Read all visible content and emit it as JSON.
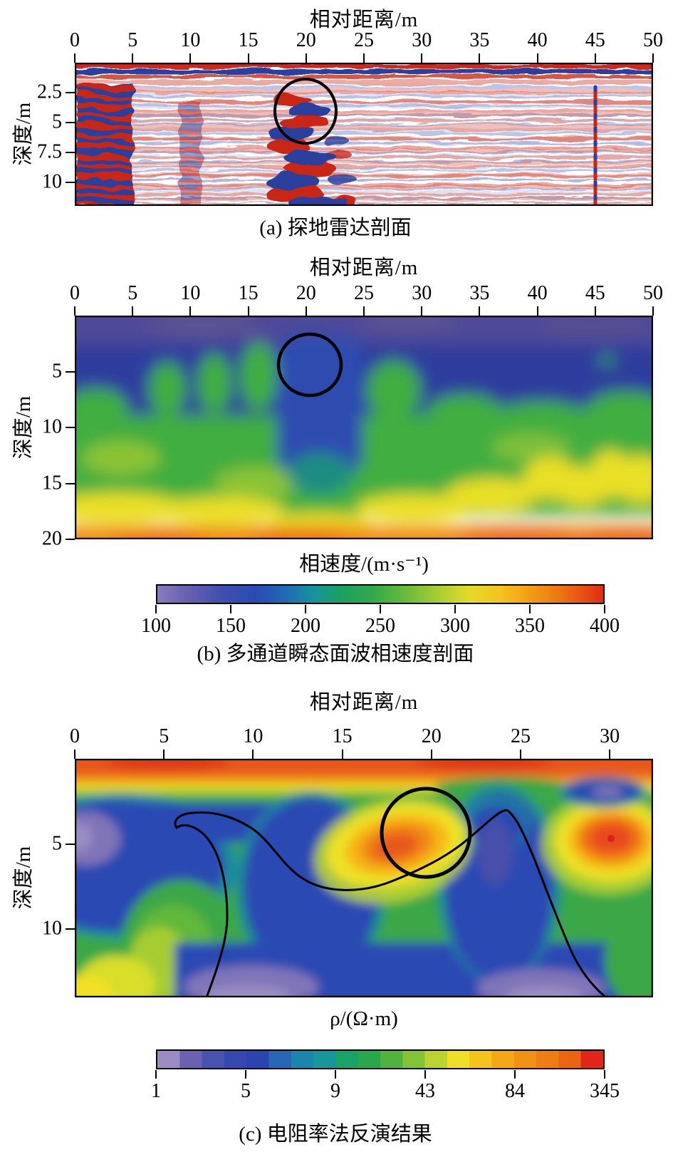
{
  "panel_a": {
    "axis_title": "相对距离/m",
    "x_ticks": [
      "0",
      "5",
      "10",
      "15",
      "20",
      "25",
      "30",
      "35",
      "40",
      "45",
      "50"
    ],
    "y_label": "深度/m",
    "y_ticks": [
      "2.5",
      "5",
      "7.5",
      "10"
    ],
    "caption": "(a) 探地雷达剖面"
  },
  "panel_b": {
    "axis_title": "相对距离/m",
    "x_ticks": [
      "0",
      "5",
      "10",
      "15",
      "20",
      "25",
      "30",
      "35",
      "40",
      "45",
      "50"
    ],
    "y_label": "深度/m",
    "y_ticks": [
      "5",
      "10",
      "15",
      "20"
    ],
    "colorbar": {
      "title": "相速度/(m·s⁻¹)",
      "ticks": [
        "100",
        "150",
        "200",
        "250",
        "300",
        "350",
        "400"
      ],
      "gradient_stops": [
        [
          "#8a7bbd",
          0
        ],
        [
          "#6b62b2",
          6
        ],
        [
          "#4150ae",
          14
        ],
        [
          "#2b4ab4",
          22
        ],
        [
          "#1e6cb4",
          29
        ],
        [
          "#17939c",
          35
        ],
        [
          "#1ba063",
          41
        ],
        [
          "#2fa94a",
          48
        ],
        [
          "#62b93b",
          55
        ],
        [
          "#a8ce30",
          63
        ],
        [
          "#e4dc28",
          70
        ],
        [
          "#f5c31d",
          77
        ],
        [
          "#f3a015",
          83
        ],
        [
          "#ef7d13",
          89
        ],
        [
          "#e95412",
          95
        ],
        [
          "#e22b15",
          100
        ]
      ]
    },
    "caption": "(b) 多通道瞬态面波相速度剖面"
  },
  "panel_c": {
    "axis_title": "相对距离/m",
    "x_ticks": [
      "0",
      "5",
      "10",
      "15",
      "20",
      "25",
      "30"
    ],
    "y_label": "深度/m",
    "y_ticks": [
      "5",
      "10"
    ],
    "colorbar": {
      "title": "ρ/(Ω·m)",
      "ticks": [
        "1",
        "5",
        "9",
        "43",
        "84",
        "345"
      ],
      "cell_colors": [
        "#9a8cc3",
        "#6c61b0",
        "#4753ae",
        "#3747ad",
        "#2b44af",
        "#2767b4",
        "#1a86ac",
        "#17969b",
        "#1ba269",
        "#27a84f",
        "#52b23f",
        "#83c437",
        "#bad331",
        "#efe026",
        "#f6c21c",
        "#f4a816",
        "#f19114",
        "#ee7d13",
        "#ea6412",
        "#e1251b"
      ]
    },
    "caption": "(c) 电阻率法反演结果"
  },
  "chart_data": [
    {
      "type": "heatmap",
      "panel": "a",
      "title": "(a) 探地雷达剖面",
      "xlabel": "相对距离/m",
      "ylabel": "深度/m",
      "x_range": [
        0,
        50
      ],
      "y_range": [
        0,
        12
      ],
      "x_ticks": [
        0,
        5,
        10,
        15,
        20,
        25,
        30,
        35,
        40,
        45,
        50
      ],
      "y_ticks": [
        2.5,
        5,
        7.5,
        10
      ],
      "description": "GPR radargram with red/blue reflection amplitudes on white background",
      "features": [
        "strong horizontal layered red-blue reflections at 0-5 m distance for full depth",
        "continuous red and blue bands at depth 0-1.5 m across whole section",
        "chaotic high-amplitude diffraction zone at 16-26 m distance from ~2.5 m depth to bottom",
        "faint pink/blue laminated texture elsewhere",
        "vertical dotted red-blue ringing artifact at 45 m distance"
      ],
      "annotations": [
        {
          "type": "ellipse",
          "x": 20,
          "y": 4,
          "rx": 2.7,
          "ry": 2.7,
          "note": "black circle marking anomaly"
        }
      ],
      "legend": "none",
      "grid": false
    },
    {
      "type": "heatmap",
      "panel": "b",
      "title": "(b) 多通道瞬态面波相速度剖面",
      "xlabel": "相对距离/m",
      "ylabel": "深度/m",
      "colorbar_label": "相速度/(m·s⁻¹)",
      "x_range": [
        0,
        50
      ],
      "y_range": [
        0,
        20
      ],
      "x_ticks": [
        0,
        5,
        10,
        15,
        20,
        25,
        30,
        35,
        40,
        45,
        50
      ],
      "y_ticks": [
        5,
        10,
        15,
        20
      ],
      "colorbar_range": [
        100,
        400
      ],
      "colorbar_ticks": [
        100,
        150,
        200,
        250,
        300,
        350,
        400
      ],
      "layers": [
        {
          "depth_m": "0-2",
          "phase_velocity": "≈100-130 (indigo/purple)"
        },
        {
          "depth_m": "2-7",
          "phase_velocity": "≈140-180 (dark blue)"
        },
        {
          "depth_m": "7-15",
          "phase_velocity": "≈200-260 (green)"
        },
        {
          "depth_m": "15-20",
          "phase_velocity": "≈280-400 (yellow to orange)"
        }
      ],
      "annotations": [
        {
          "type": "ellipse",
          "x": 20.3,
          "y": 4.4,
          "rx": 2.7,
          "ry": 2.7,
          "note": "black circle marking low-velocity anomaly"
        },
        {
          "type": "zone",
          "x": "17.5-25",
          "depth_m": "2-14",
          "note": "low-velocity channel (~150-180 m/s) descending below circle"
        }
      ],
      "legend": "horizontal colorbar below panel",
      "grid": false
    },
    {
      "type": "heatmap",
      "panel": "c",
      "title": "(c) 电阻率法反演结果",
      "xlabel": "相对距离/m",
      "ylabel": "深度/m",
      "colorbar_label": "ρ/(Ω·m)",
      "x_range": [
        0,
        32.4
      ],
      "y_range": [
        0,
        14
      ],
      "x_ticks": [
        0,
        5,
        10,
        15,
        20,
        25,
        30
      ],
      "y_ticks": [
        5,
        10
      ],
      "colorbar_scale": "logarithmic, discrete 20 steps",
      "colorbar_ticks": [
        1,
        5,
        9,
        43,
        84,
        345
      ],
      "features": [
        "thin high-resistivity (84-345) red-orange layer at surface",
        "green intermediate layer beneath surface",
        "large low-resistivity (1-5) blue zones with purple cores at left, centre and bottom",
        "high-resistivity orange anomaly at ~15-22 m distance, 3-7 m depth (inside circle)",
        "high-resistivity red-orange anomaly at ~28-32 m distance, 2.5-7 m depth",
        "small blue-purple low-resistivity blob at ~28-31 m distance, 1.3-2.5 m depth",
        "yellow high zone at bottom-left corner",
        "black contour line outlining low-resistivity body from ~7 m distance at bottom up to 24 m distance peak then down to ~30 m at bottom"
      ],
      "annotations": [
        {
          "type": "circle",
          "x": 19.7,
          "y": 4.3,
          "r": 2.5,
          "note": "black circle marking anomaly"
        },
        {
          "type": "contour-line",
          "note": "single black resistivity contour"
        }
      ],
      "legend": "horizontal discrete colorbar below panel",
      "grid": false
    }
  ]
}
